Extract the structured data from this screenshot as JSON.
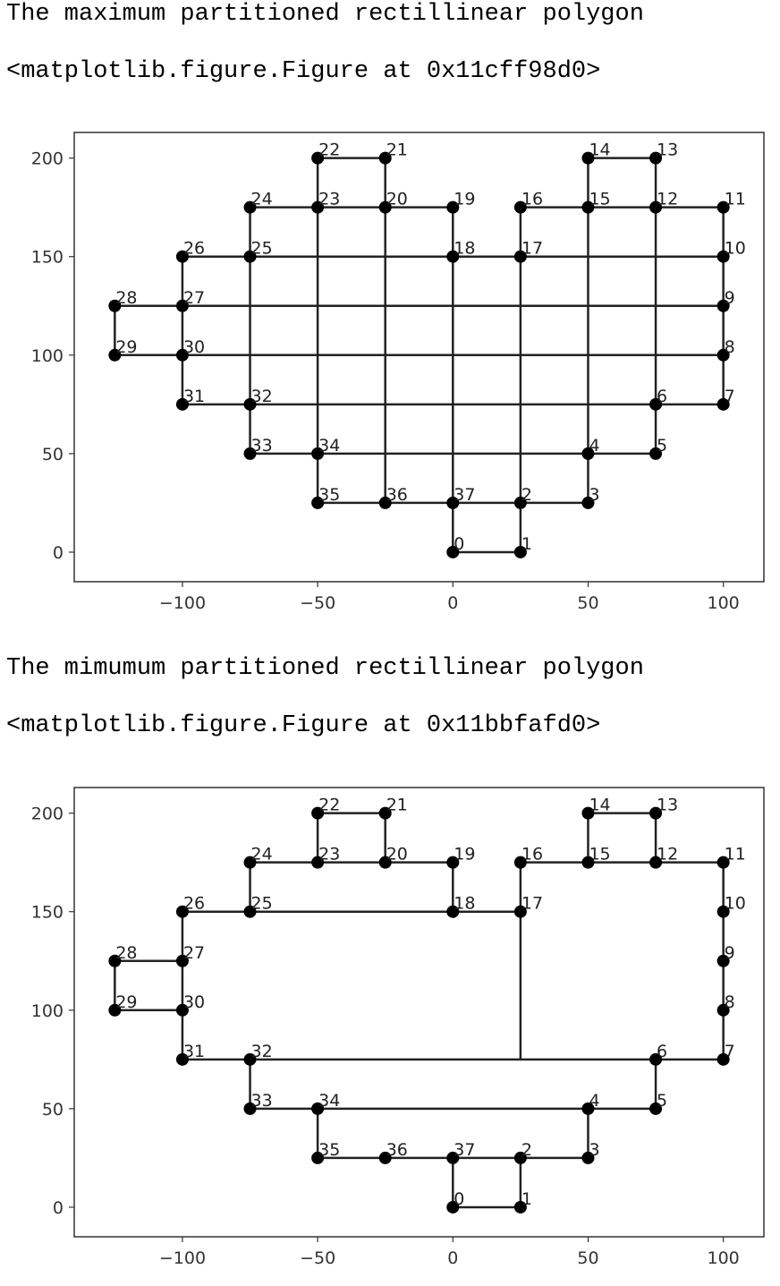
{
  "cells": [
    {
      "title": "The maximum partitioned rectillinear polygon",
      "repr": "<matplotlib.figure.Figure at 0x11cff98d0>"
    },
    {
      "title": "The mimumum partitioned rectillinear polygon",
      "repr": "<matplotlib.figure.Figure at 0x11bbfafd0>"
    }
  ],
  "chart_data": [
    {
      "type": "line",
      "xlim": [
        -140,
        115
      ],
      "ylim": [
        -15,
        213
      ],
      "xticks": [
        -100,
        -50,
        0,
        50,
        100
      ],
      "yticks": [
        0,
        50,
        100,
        150,
        200
      ],
      "xtick_labels": [
        "−100",
        "−50",
        "0",
        "50",
        "100"
      ],
      "ytick_labels": [
        "0",
        "50",
        "100",
        "150",
        "200"
      ],
      "grid": false,
      "points": [
        {
          "id": "0",
          "x": 0,
          "y": 0
        },
        {
          "id": "1",
          "x": 25,
          "y": 0
        },
        {
          "id": "2",
          "x": 25,
          "y": 25
        },
        {
          "id": "3",
          "x": 50,
          "y": 25
        },
        {
          "id": "4",
          "x": 50,
          "y": 50
        },
        {
          "id": "5",
          "x": 75,
          "y": 50
        },
        {
          "id": "6",
          "x": 75,
          "y": 75
        },
        {
          "id": "7",
          "x": 100,
          "y": 75
        },
        {
          "id": "8",
          "x": 100,
          "y": 100
        },
        {
          "id": "9",
          "x": 100,
          "y": 125
        },
        {
          "id": "10",
          "x": 100,
          "y": 150
        },
        {
          "id": "11",
          "x": 100,
          "y": 175
        },
        {
          "id": "12",
          "x": 75,
          "y": 175
        },
        {
          "id": "13",
          "x": 75,
          "y": 200
        },
        {
          "id": "14",
          "x": 50,
          "y": 200
        },
        {
          "id": "15",
          "x": 50,
          "y": 175
        },
        {
          "id": "16",
          "x": 25,
          "y": 175
        },
        {
          "id": "17",
          "x": 25,
          "y": 150
        },
        {
          "id": "18",
          "x": 0,
          "y": 150
        },
        {
          "id": "19",
          "x": 0,
          "y": 175
        },
        {
          "id": "20",
          "x": -25,
          "y": 175
        },
        {
          "id": "21",
          "x": -25,
          "y": 200
        },
        {
          "id": "22",
          "x": -50,
          "y": 200
        },
        {
          "id": "23",
          "x": -50,
          "y": 175
        },
        {
          "id": "24",
          "x": -75,
          "y": 175
        },
        {
          "id": "25",
          "x": -75,
          "y": 150
        },
        {
          "id": "26",
          "x": -100,
          "y": 150
        },
        {
          "id": "27",
          "x": -100,
          "y": 125
        },
        {
          "id": "28",
          "x": -125,
          "y": 125
        },
        {
          "id": "29",
          "x": -125,
          "y": 100
        },
        {
          "id": "30",
          "x": -100,
          "y": 100
        },
        {
          "id": "31",
          "x": -100,
          "y": 75
        },
        {
          "id": "32",
          "x": -75,
          "y": 75
        },
        {
          "id": "33",
          "x": -75,
          "y": 50
        },
        {
          "id": "34",
          "x": -50,
          "y": 50
        },
        {
          "id": "35",
          "x": -50,
          "y": 25
        },
        {
          "id": "36",
          "x": -25,
          "y": 25
        },
        {
          "id": "37",
          "x": 0,
          "y": 25
        }
      ],
      "segments": [
        [
          [
            0,
            0
          ],
          [
            25,
            0
          ]
        ],
        [
          [
            0,
            0
          ],
          [
            0,
            25
          ]
        ],
        [
          [
            25,
            0
          ],
          [
            25,
            25
          ]
        ],
        [
          [
            -50,
            25
          ],
          [
            50,
            25
          ]
        ],
        [
          [
            -75,
            50
          ],
          [
            75,
            50
          ]
        ],
        [
          [
            -100,
            75
          ],
          [
            100,
            75
          ]
        ],
        [
          [
            -125,
            100
          ],
          [
            100,
            100
          ]
        ],
        [
          [
            -125,
            125
          ],
          [
            100,
            125
          ]
        ],
        [
          [
            -100,
            150
          ],
          [
            100,
            150
          ]
        ],
        [
          [
            -75,
            175
          ],
          [
            0,
            175
          ]
        ],
        [
          [
            25,
            175
          ],
          [
            100,
            175
          ]
        ],
        [
          [
            -50,
            200
          ],
          [
            -25,
            200
          ]
        ],
        [
          [
            50,
            200
          ],
          [
            75,
            200
          ]
        ],
        [
          [
            -125,
            100
          ],
          [
            -125,
            125
          ]
        ],
        [
          [
            -100,
            75
          ],
          [
            -100,
            150
          ]
        ],
        [
          [
            -75,
            50
          ],
          [
            -75,
            175
          ]
        ],
        [
          [
            -50,
            25
          ],
          [
            -50,
            200
          ]
        ],
        [
          [
            -25,
            25
          ],
          [
            -25,
            200
          ]
        ],
        [
          [
            0,
            25
          ],
          [
            0,
            175
          ]
        ],
        [
          [
            25,
            25
          ],
          [
            25,
            175
          ]
        ],
        [
          [
            50,
            25
          ],
          [
            50,
            200
          ]
        ],
        [
          [
            75,
            50
          ],
          [
            75,
            200
          ]
        ],
        [
          [
            100,
            75
          ],
          [
            100,
            175
          ]
        ]
      ]
    },
    {
      "type": "line",
      "xlim": [
        -140,
        115
      ],
      "ylim": [
        -15,
        213
      ],
      "xticks": [
        -100,
        -50,
        0,
        50,
        100
      ],
      "yticks": [
        0,
        50,
        100,
        150,
        200
      ],
      "xtick_labels": [
        "−100",
        "−50",
        "0",
        "50",
        "100"
      ],
      "ytick_labels": [
        "0",
        "50",
        "100",
        "150",
        "200"
      ],
      "grid": false,
      "points": [
        {
          "id": "0",
          "x": 0,
          "y": 0
        },
        {
          "id": "1",
          "x": 25,
          "y": 0
        },
        {
          "id": "2",
          "x": 25,
          "y": 25
        },
        {
          "id": "3",
          "x": 50,
          "y": 25
        },
        {
          "id": "4",
          "x": 50,
          "y": 50
        },
        {
          "id": "5",
          "x": 75,
          "y": 50
        },
        {
          "id": "6",
          "x": 75,
          "y": 75
        },
        {
          "id": "7",
          "x": 100,
          "y": 75
        },
        {
          "id": "8",
          "x": 100,
          "y": 100
        },
        {
          "id": "9",
          "x": 100,
          "y": 125
        },
        {
          "id": "10",
          "x": 100,
          "y": 150
        },
        {
          "id": "11",
          "x": 100,
          "y": 175
        },
        {
          "id": "12",
          "x": 75,
          "y": 175
        },
        {
          "id": "13",
          "x": 75,
          "y": 200
        },
        {
          "id": "14",
          "x": 50,
          "y": 200
        },
        {
          "id": "15",
          "x": 50,
          "y": 175
        },
        {
          "id": "16",
          "x": 25,
          "y": 175
        },
        {
          "id": "17",
          "x": 25,
          "y": 150
        },
        {
          "id": "18",
          "x": 0,
          "y": 150
        },
        {
          "id": "19",
          "x": 0,
          "y": 175
        },
        {
          "id": "20",
          "x": -25,
          "y": 175
        },
        {
          "id": "21",
          "x": -25,
          "y": 200
        },
        {
          "id": "22",
          "x": -50,
          "y": 200
        },
        {
          "id": "23",
          "x": -50,
          "y": 175
        },
        {
          "id": "24",
          "x": -75,
          "y": 175
        },
        {
          "id": "25",
          "x": -75,
          "y": 150
        },
        {
          "id": "26",
          "x": -100,
          "y": 150
        },
        {
          "id": "27",
          "x": -100,
          "y": 125
        },
        {
          "id": "28",
          "x": -125,
          "y": 125
        },
        {
          "id": "29",
          "x": -125,
          "y": 100
        },
        {
          "id": "30",
          "x": -100,
          "y": 100
        },
        {
          "id": "31",
          "x": -100,
          "y": 75
        },
        {
          "id": "32",
          "x": -75,
          "y": 75
        },
        {
          "id": "33",
          "x": -75,
          "y": 50
        },
        {
          "id": "34",
          "x": -50,
          "y": 50
        },
        {
          "id": "35",
          "x": -50,
          "y": 25
        },
        {
          "id": "36",
          "x": -25,
          "y": 25
        },
        {
          "id": "37",
          "x": 0,
          "y": 25
        }
      ],
      "segments": [
        [
          [
            0,
            0
          ],
          [
            25,
            0
          ]
        ],
        [
          [
            0,
            0
          ],
          [
            0,
            25
          ]
        ],
        [
          [
            25,
            0
          ],
          [
            25,
            25
          ]
        ],
        [
          [
            -50,
            25
          ],
          [
            50,
            25
          ]
        ],
        [
          [
            -75,
            50
          ],
          [
            75,
            50
          ]
        ],
        [
          [
            -100,
            75
          ],
          [
            100,
            75
          ]
        ],
        [
          [
            -125,
            100
          ],
          [
            -100,
            100
          ]
        ],
        [
          [
            -125,
            125
          ],
          [
            -100,
            125
          ]
        ],
        [
          [
            -100,
            150
          ],
          [
            25,
            150
          ]
        ],
        [
          [
            -75,
            175
          ],
          [
            0,
            175
          ]
        ],
        [
          [
            25,
            175
          ],
          [
            100,
            175
          ]
        ],
        [
          [
            -50,
            200
          ],
          [
            -25,
            200
          ]
        ],
        [
          [
            50,
            200
          ],
          [
            75,
            200
          ]
        ],
        [
          [
            -125,
            100
          ],
          [
            -125,
            125
          ]
        ],
        [
          [
            -100,
            75
          ],
          [
            -100,
            150
          ]
        ],
        [
          [
            -75,
            50
          ],
          [
            -75,
            75
          ]
        ],
        [
          [
            -75,
            150
          ],
          [
            -75,
            175
          ]
        ],
        [
          [
            -50,
            25
          ],
          [
            -50,
            50
          ]
        ],
        [
          [
            -50,
            175
          ],
          [
            -50,
            200
          ]
        ],
        [
          [
            -25,
            175
          ],
          [
            -25,
            200
          ]
        ],
        [
          [
            0,
            150
          ],
          [
            0,
            175
          ]
        ],
        [
          [
            25,
            75
          ],
          [
            25,
            175
          ]
        ],
        [
          [
            50,
            25
          ],
          [
            50,
            50
          ]
        ],
        [
          [
            50,
            175
          ],
          [
            50,
            200
          ]
        ],
        [
          [
            75,
            50
          ],
          [
            75,
            75
          ]
        ],
        [
          [
            75,
            175
          ],
          [
            75,
            200
          ]
        ],
        [
          [
            100,
            75
          ],
          [
            100,
            175
          ]
        ]
      ]
    }
  ],
  "style": {
    "line_color": "#222222",
    "marker_color": "#000000",
    "frame_color": "#333333"
  }
}
